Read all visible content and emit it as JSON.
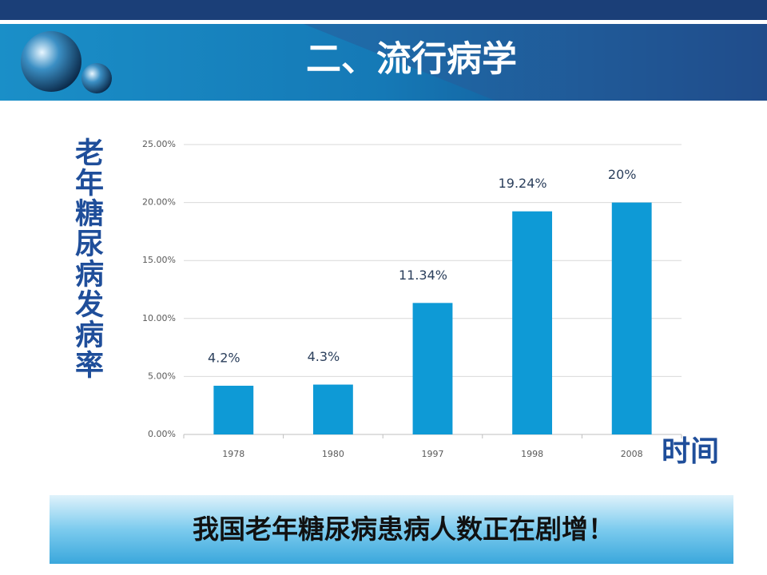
{
  "header": {
    "title": "二、流行病学"
  },
  "chart_data": {
    "type": "bar",
    "y_label": "老年糖尿病发病率",
    "x_label": "时间",
    "categories": [
      "1978",
      "1980",
      "1997",
      "1998",
      "2008"
    ],
    "values": [
      4.2,
      4.3,
      11.34,
      19.24,
      20
    ],
    "value_labels": [
      "4.2%",
      "4.3%",
      "11.34%",
      "19.24%",
      "20%"
    ],
    "color": "#0e9ad6",
    "ylim": [
      0,
      25
    ],
    "yticks": [
      {
        "value": 0,
        "label": "0.00%"
      },
      {
        "value": 5,
        "label": "5.00%"
      },
      {
        "value": 10,
        "label": "10.00%"
      },
      {
        "value": 15,
        "label": "15.00%"
      },
      {
        "value": 20,
        "label": "20.00%"
      },
      {
        "value": 25,
        "label": "25.00%"
      }
    ],
    "grid": true
  },
  "footer": {
    "banner": "我国老年糖尿病患病人数正在剧增！"
  }
}
